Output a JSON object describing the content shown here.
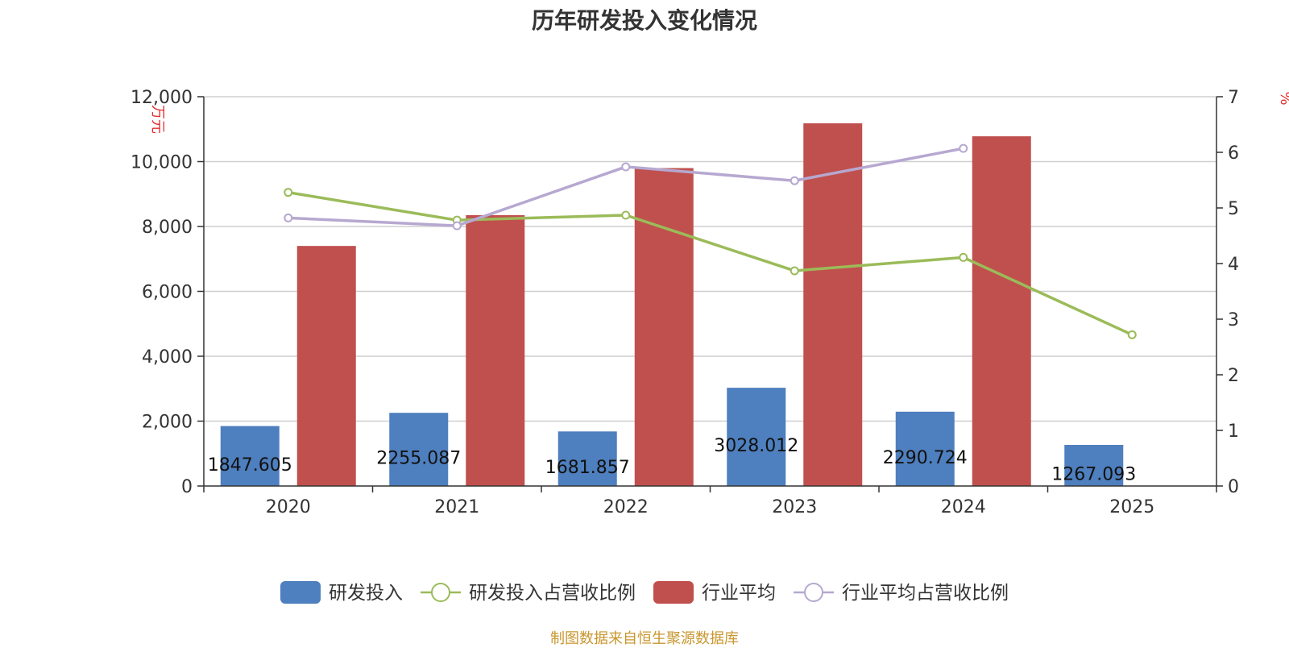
{
  "chart_data": {
    "type": "bar",
    "title": "历年研发投入变化情况",
    "categories": [
      "2020",
      "2021",
      "2022",
      "2023",
      "2024",
      "2025"
    ],
    "y_left": {
      "label": "万元",
      "ticks": [
        "0",
        "2,000",
        "4,000",
        "6,000",
        "8,000",
        "10,000",
        "12,000"
      ],
      "range": [
        0,
        12000
      ]
    },
    "y_right": {
      "label": "%",
      "ticks": [
        "0",
        "1",
        "2",
        "3",
        "4",
        "5",
        "6",
        "7"
      ],
      "range": [
        0,
        7
      ]
    },
    "grid": true,
    "legend_position": "bottom-center",
    "series": [
      {
        "name": "研发投入",
        "kind": "bar",
        "axis": "left",
        "color": "#4e7fbe",
        "values": [
          1847.605,
          2255.087,
          1681.857,
          3028.012,
          2290.724,
          1267.093
        ],
        "labels": [
          "1847.605",
          "2255.087",
          "1681.857",
          "3028.012",
          "2290.724",
          "1267.093"
        ]
      },
      {
        "name": "研发投入占营收比例",
        "kind": "line",
        "axis": "right",
        "color": "#9bbb59",
        "values": [
          5.28,
          4.78,
          4.87,
          3.87,
          4.11,
          2.72
        ]
      },
      {
        "name": "行业平均",
        "kind": "bar",
        "axis": "left",
        "color": "#c0504d",
        "values": [
          7400,
          8350,
          9800,
          11180,
          10780,
          null
        ]
      },
      {
        "name": "行业平均占营收比例",
        "kind": "line",
        "axis": "right",
        "color": "#b6a8d0",
        "values": [
          4.82,
          4.68,
          5.74,
          5.49,
          6.07,
          null
        ]
      }
    ]
  },
  "footer": {
    "source": "制图数据来自恒生聚源数据库"
  }
}
